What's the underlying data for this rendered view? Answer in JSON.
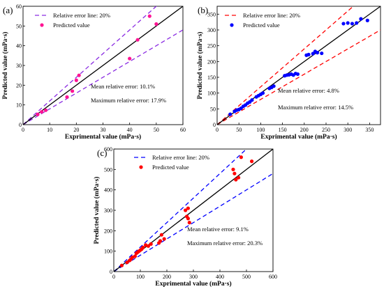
{
  "chart_data": [
    {
      "type": "scatter",
      "panel": "(a)",
      "xlabel": "Exprimental value (mPa·s)",
      "ylabel": "Predicted value (mPa·s)",
      "xlim": [
        0,
        60
      ],
      "ylim": [
        0,
        60
      ],
      "xticks": [
        0,
        10,
        20,
        30,
        40,
        50,
        60
      ],
      "yticks": [
        0,
        10,
        20,
        30,
        40,
        50,
        60
      ],
      "error_band": 0.2,
      "legend": [
        "Relative error line: 20%",
        "Predicted value"
      ],
      "annotations": [
        "Mean relative error: 10.1%",
        "Maximum relative error: 17.9%"
      ],
      "colors": {
        "line": "#8a2be2",
        "points": "#ff1493"
      },
      "points": [
        [
          5.5,
          5.2
        ],
        [
          7,
          6.5
        ],
        [
          8.5,
          7.3
        ],
        [
          16.5,
          14
        ],
        [
          18.5,
          17
        ],
        [
          20,
          22.5
        ],
        [
          21,
          25
        ],
        [
          40,
          33.5
        ],
        [
          43,
          43
        ],
        [
          47.5,
          55
        ],
        [
          50,
          51
        ]
      ]
    },
    {
      "type": "scatter",
      "panel": "(b)",
      "xlabel": "Exprimental value (mPa·s)",
      "ylabel": "Predicted value (mPa·s)",
      "xlim": [
        0,
        375
      ],
      "ylim": [
        0,
        375
      ],
      "xticks": [
        0,
        50,
        100,
        150,
        200,
        250,
        300,
        350
      ],
      "yticks": [
        0,
        50,
        100,
        150,
        200,
        250,
        300,
        350
      ],
      "error_band": 0.2,
      "legend": [
        "Relative error line: 20%",
        "Predicted value"
      ],
      "annotations": [
        "Mean relative error: 4.8%",
        "Maximum relative error: 14.5%"
      ],
      "colors": {
        "line": "#ff0000",
        "points": "#0000ff"
      },
      "points": [
        [
          30,
          33
        ],
        [
          40,
          42
        ],
        [
          45,
          46
        ],
        [
          50,
          48
        ],
        [
          55,
          52
        ],
        [
          60,
          58
        ],
        [
          65,
          62
        ],
        [
          70,
          68
        ],
        [
          75,
          72
        ],
        [
          80,
          78
        ],
        [
          90,
          88
        ],
        [
          95,
          92
        ],
        [
          100,
          96
        ],
        [
          105,
          100
        ],
        [
          120,
          115
        ],
        [
          125,
          118
        ],
        [
          130,
          122
        ],
        [
          155,
          155
        ],
        [
          160,
          157
        ],
        [
          165,
          158
        ],
        [
          170,
          160
        ],
        [
          175,
          157
        ],
        [
          180,
          162
        ],
        [
          185,
          160
        ],
        [
          205,
          220
        ],
        [
          210,
          222
        ],
        [
          220,
          225
        ],
        [
          225,
          232
        ],
        [
          230,
          228
        ],
        [
          240,
          226
        ],
        [
          290,
          320
        ],
        [
          300,
          322
        ],
        [
          310,
          320
        ],
        [
          320,
          322
        ],
        [
          330,
          335
        ],
        [
          345,
          330
        ]
      ]
    },
    {
      "type": "scatter",
      "panel": "(c)",
      "xlabel": "Exprimental value (mPa·s)",
      "ylabel": "Predicted value (mPa·s)",
      "xlim": [
        0,
        600
      ],
      "ylim": [
        0,
        600
      ],
      "xticks": [
        0,
        100,
        200,
        300,
        400,
        500,
        600
      ],
      "yticks": [
        0,
        100,
        200,
        300,
        400,
        500,
        600
      ],
      "error_band": 0.2,
      "legend": [
        "Relative error line: 20%",
        "Predicted value"
      ],
      "annotations": [
        "Mean relative error: 9.1%",
        "Maximum relative error: 20.3%"
      ],
      "colors": {
        "line": "#0000ff",
        "points": "#ff0000"
      },
      "points": [
        [
          30,
          30
        ],
        [
          50,
          45
        ],
        [
          60,
          55
        ],
        [
          65,
          62
        ],
        [
          70,
          70
        ],
        [
          80,
          75
        ],
        [
          85,
          90
        ],
        [
          90,
          95
        ],
        [
          95,
          100
        ],
        [
          100,
          105
        ],
        [
          105,
          110
        ],
        [
          110,
          118
        ],
        [
          120,
          130
        ],
        [
          130,
          125
        ],
        [
          140,
          135
        ],
        [
          170,
          140
        ],
        [
          175,
          150
        ],
        [
          180,
          180
        ],
        [
          190,
          160
        ],
        [
          270,
          300
        ],
        [
          275,
          270
        ],
        [
          280,
          260
        ],
        [
          285,
          240
        ],
        [
          280,
          310
        ],
        [
          450,
          500
        ],
        [
          455,
          480
        ],
        [
          460,
          450
        ],
        [
          470,
          460
        ],
        [
          480,
          560
        ],
        [
          520,
          540
        ]
      ]
    }
  ]
}
